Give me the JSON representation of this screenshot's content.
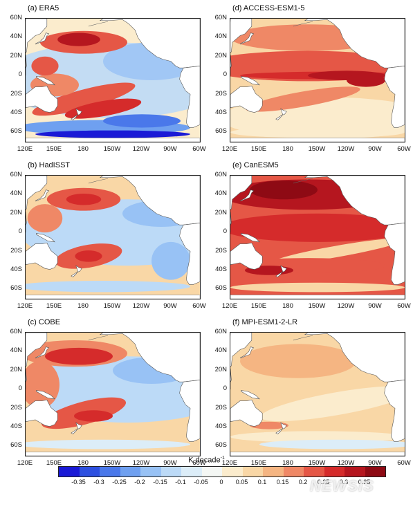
{
  "panels": [
    {
      "id": "a",
      "title": "(a) ERA5"
    },
    {
      "id": "b",
      "title": "(b) HadISST"
    },
    {
      "id": "c",
      "title": "(c) COBE"
    },
    {
      "id": "d",
      "title": "(d) ACCESS-ESM1-5"
    },
    {
      "id": "e",
      "title": "(e) CanESM5"
    },
    {
      "id": "f",
      "title": "(f) MPI-ESM1-2-LR"
    }
  ],
  "lat_ticks": [
    "60N",
    "40N",
    "20N",
    "0",
    "20S",
    "40S",
    "60S"
  ],
  "lon_ticks": [
    "120E",
    "150E",
    "180",
    "150W",
    "120W",
    "90W",
    "60W"
  ],
  "colorbar": {
    "title": "K decade",
    "title_exponent": "-1",
    "labels": [
      "-0.35",
      "-0.3",
      "-0.25",
      "-0.2",
      "-0.15",
      "-0.1",
      "-0.05",
      "0",
      "0.05",
      "0.1",
      "0.15",
      "0.2",
      "0.25",
      "0.3",
      "0.35"
    ],
    "colors": [
      "#1a1ad6",
      "#2d50e0",
      "#4a78ea",
      "#6fa0f0",
      "#98c2f5",
      "#bcdaf7",
      "#dcedf8",
      "#f4f7f4",
      "#fbeccd",
      "#f9d7a6",
      "#f5b582",
      "#ef8866",
      "#e55746",
      "#d52b2b",
      "#b5161f",
      "#8e0a14"
    ]
  },
  "watermark": "NEWSIS"
}
